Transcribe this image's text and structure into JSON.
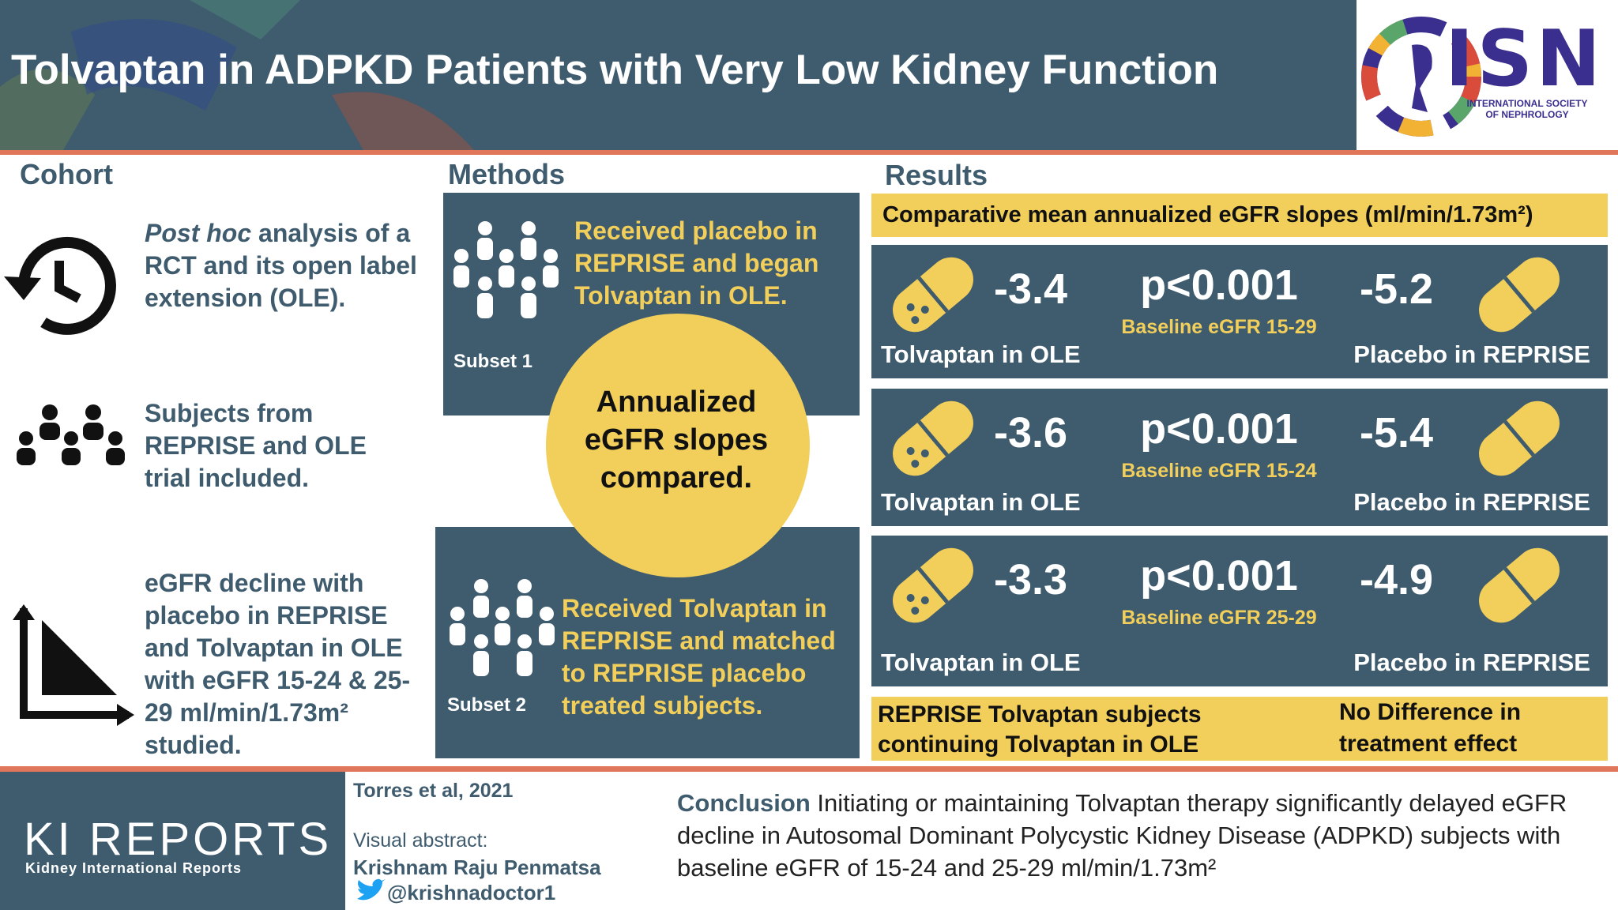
{
  "header": {
    "title": "Tolvaptan in ADPKD Patients with Very Low Kidney Function",
    "logo": {
      "name": "ISN",
      "subtitle_line1": "INTERNATIONAL SOCIETY",
      "subtitle_line2": "OF NEPHROLOGY"
    }
  },
  "cohort": {
    "heading": "Cohort",
    "items": [
      {
        "emphasis": "Post hoc",
        "text": " analysis of a RCT and its open label extension (OLE)."
      },
      {
        "text": "Subjects from REPRISE and OLE trial included."
      },
      {
        "text": "eGFR decline with placebo in REPRISE and Tolvaptan in OLE with eGFR 15-24 & 25-29 ml/min/1.73m²  studied."
      }
    ]
  },
  "methods": {
    "heading": "Methods",
    "subset1": {
      "label": "Subset 1",
      "text": "Received placebo in REPRISE and began Tolvaptan in OLE."
    },
    "circle": "Annualized eGFR slopes compared.",
    "subset2": {
      "label": "Subset 2",
      "text": "Received Tolvaptan in REPRISE and matched to REPRISE placebo treated subjects."
    }
  },
  "results": {
    "heading": "Results",
    "banner": "Comparative mean annualized eGFR slopes (ml/min/1.73m²)",
    "rows": [
      {
        "tolvaptan_value": "-3.4",
        "tolvaptan_label": "Tolvaptan in OLE",
        "p_value": "p<0.001",
        "baseline": "Baseline eGFR 15-29",
        "placebo_value": "-5.2",
        "placebo_label": "Placebo in REPRISE"
      },
      {
        "tolvaptan_value": "-3.6",
        "tolvaptan_label": "Tolvaptan in OLE",
        "p_value": "p<0.001",
        "baseline": "Baseline eGFR 15-24",
        "placebo_value": "-5.4",
        "placebo_label": "Placebo in REPRISE"
      },
      {
        "tolvaptan_value": "-3.3",
        "tolvaptan_label": "Tolvaptan in OLE",
        "p_value": "p<0.001",
        "baseline": "Baseline eGFR 25-29",
        "placebo_value": "-4.9",
        "placebo_label": "Placebo in REPRISE"
      }
    ],
    "footer": {
      "left": "REPRISE Tolvaptan subjects continuing Tolvaptan in OLE",
      "right": "No Difference in treatment effect"
    }
  },
  "footer": {
    "brand": "KI REPORTS",
    "brand_subtitle": "Kidney International Reports",
    "citation": "Torres et al, 2021",
    "credit_label": "Visual abstract:",
    "author": "Krishnam Raju Penmatsa",
    "handle": "@krishnadoctor1",
    "conclusion": {
      "label": "Conclusion",
      "text": " Initiating or maintaining Tolvaptan therapy significantly delayed eGFR decline in Autosomal Dominant Polycystic Kidney Disease (ADPKD) subjects with baseline eGFR of 15-24 and 25-29 ml/min/1.73m²"
    }
  }
}
